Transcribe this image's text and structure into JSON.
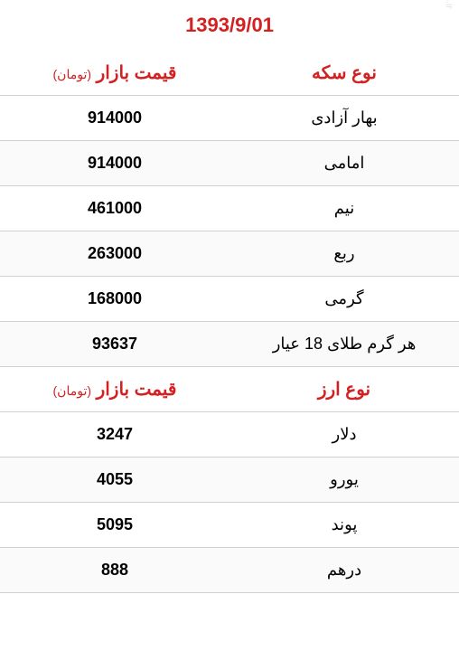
{
  "date": "1393/9/01",
  "watermark": "mashreghnews.ir",
  "colors": {
    "header_text": "#d32020",
    "border": "#d0d0d0",
    "text": "#000000",
    "background": "#ffffff"
  },
  "coin_section": {
    "header_type": "نوع سکه",
    "header_price": "قیمت بازار",
    "header_unit": "(تومان)",
    "rows": [
      {
        "name": "بهار آزادی",
        "price": "914000"
      },
      {
        "name": "امامی",
        "price": "914000"
      },
      {
        "name": "نیم",
        "price": "461000"
      },
      {
        "name": "ربع",
        "price": "263000"
      },
      {
        "name": "گرمی",
        "price": "168000"
      },
      {
        "name": "هر گرم طلای 18 عیار",
        "price": "93637"
      }
    ]
  },
  "currency_section": {
    "header_type": "نوع ارز",
    "header_price": "قیمت بازار",
    "header_unit": "(تومان)",
    "rows": [
      {
        "name": "دلار",
        "price": "3247"
      },
      {
        "name": "یورو",
        "price": "4055"
      },
      {
        "name": "پوند",
        "price": "5095"
      },
      {
        "name": "درهم",
        "price": "888"
      }
    ]
  }
}
